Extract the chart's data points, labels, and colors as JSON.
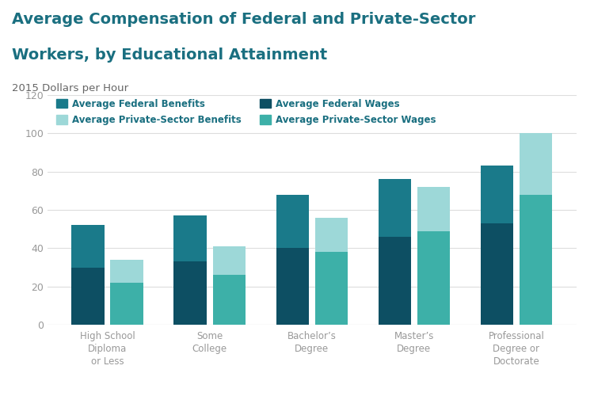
{
  "title_line1": "Average Compensation of Federal and Private-Sector",
  "title_line2": "Workers, by Educational Attainment",
  "subtitle": "2015 Dollars per Hour",
  "categories": [
    "High School\nDiploma\nor Less",
    "Some\nCollege",
    "Bachelor’s\nDegree",
    "Master’s\nDegree",
    "Professional\nDegree or\nDoctorate"
  ],
  "federal_wages": [
    30,
    33,
    40,
    46,
    53
  ],
  "federal_benefits": [
    22,
    24,
    28,
    30,
    30
  ],
  "private_wages": [
    22,
    26,
    38,
    49,
    68
  ],
  "private_benefits": [
    12,
    15,
    18,
    23,
    32
  ],
  "color_fed_wages": "#0d4f63",
  "color_fed_benefits": "#1a7a8a",
  "color_priv_wages": "#3db0a8",
  "color_priv_benefits": "#9dd8d8",
  "ylim": [
    0,
    120
  ],
  "yticks": [
    0,
    20,
    40,
    60,
    80,
    100,
    120
  ],
  "bar_width": 0.32,
  "background_color": "#ffffff",
  "legend_labels": [
    "Average Federal Benefits",
    "Average Private-Sector Benefits",
    "Average Federal Wages",
    "Average Private-Sector Wages"
  ],
  "title_color": "#1a6f80",
  "subtitle_color": "#666666",
  "tick_color": "#999999"
}
